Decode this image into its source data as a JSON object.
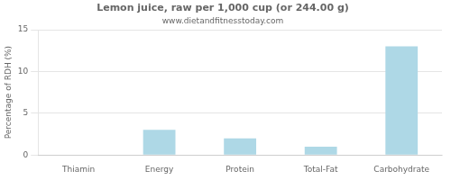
{
  "chart_data": {
    "type": "bar",
    "title": "Lemon juice, raw per 1,000 cup (or 244.00 g)",
    "subtitle": "www.dietandfitnesstoday.com",
    "categories": [
      "Thiamin",
      "Energy",
      "Protein",
      "Total-Fat",
      "Carbohydrate"
    ],
    "values": [
      0,
      3.0,
      2.0,
      1.0,
      13.0
    ],
    "color": "#aed8e6",
    "ylabel": "Percentage of RDH (%)",
    "ylim": [
      0,
      15
    ],
    "yticks": [
      0,
      5,
      10,
      15
    ],
    "grid": "y"
  }
}
